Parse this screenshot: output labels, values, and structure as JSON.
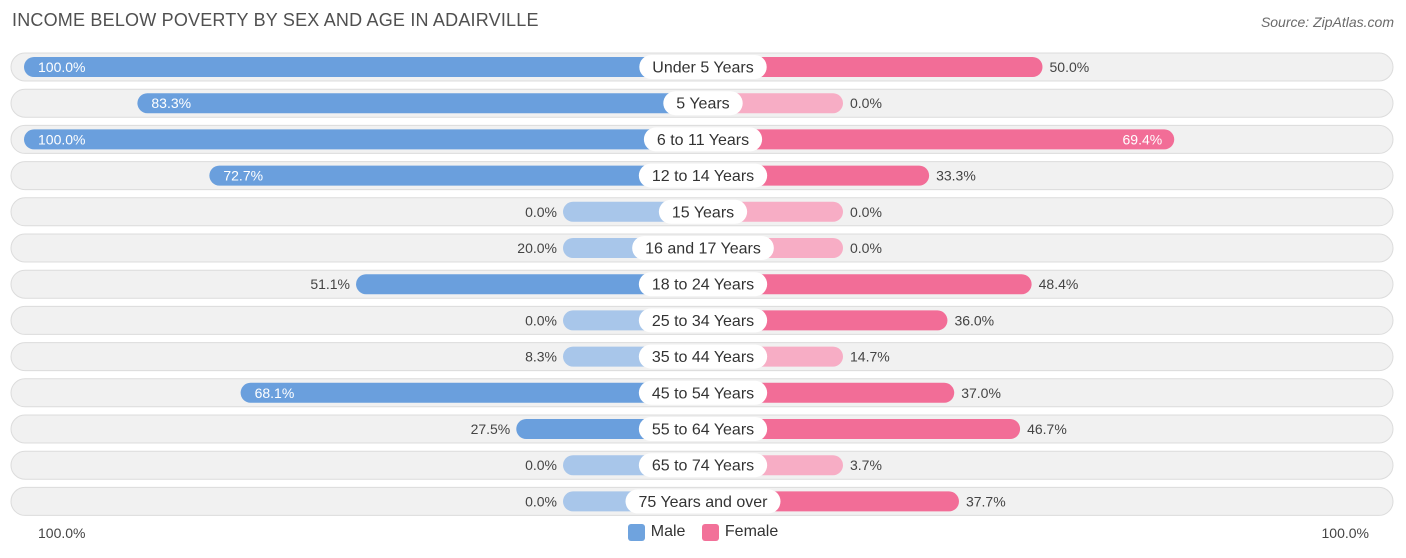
{
  "title": "INCOME BELOW POVERTY BY SEX AND AGE IN ADAIRVILLE",
  "source": "Source: ZipAtlas.com",
  "axis": {
    "left_label": "100.0%",
    "right_label": "100.0%"
  },
  "legend": [
    {
      "name": "Male",
      "color": "#6fa3de"
    },
    {
      "name": "Female",
      "color": "#f27199"
    }
  ],
  "colors": {
    "male_strong": "#6a9fdd",
    "male_light": "#a8c6ea",
    "female_strong": "#f26d97",
    "female_light": "#f7adc5",
    "track": "#f1f1f1",
    "track_border": "#dcdcdc"
  },
  "chart_data": {
    "type": "bar",
    "orientation": "horizontal-diverging",
    "title": "INCOME BELOW POVERTY BY SEX AND AGE IN ADAIRVILLE",
    "xlim": [
      -100,
      100
    ],
    "categories": [
      "Under 5 Years",
      "5 Years",
      "6 to 11 Years",
      "12 to 14 Years",
      "15 Years",
      "16 and 17 Years",
      "18 to 24 Years",
      "25 to 34 Years",
      "35 to 44 Years",
      "45 to 54 Years",
      "55 to 64 Years",
      "65 to 74 Years",
      "75 Years and over"
    ],
    "series": [
      {
        "name": "Male",
        "values": [
          100.0,
          83.3,
          100.0,
          72.7,
          0.0,
          20.0,
          51.1,
          0.0,
          8.3,
          68.1,
          27.5,
          0.0,
          0.0
        ],
        "labels": [
          "100.0%",
          "83.3%",
          "100.0%",
          "72.7%",
          "0.0%",
          "20.0%",
          "51.1%",
          "0.0%",
          "8.3%",
          "68.1%",
          "27.5%",
          "0.0%",
          "0.0%"
        ]
      },
      {
        "name": "Female",
        "values": [
          50.0,
          0.0,
          69.4,
          33.3,
          0.0,
          0.0,
          48.4,
          36.0,
          14.7,
          37.0,
          46.7,
          3.7,
          37.7
        ],
        "labels": [
          "50.0%",
          "0.0%",
          "69.4%",
          "33.3%",
          "0.0%",
          "0.0%",
          "48.4%",
          "36.0%",
          "14.7%",
          "37.0%",
          "46.7%",
          "3.7%",
          "37.7%"
        ]
      }
    ]
  }
}
